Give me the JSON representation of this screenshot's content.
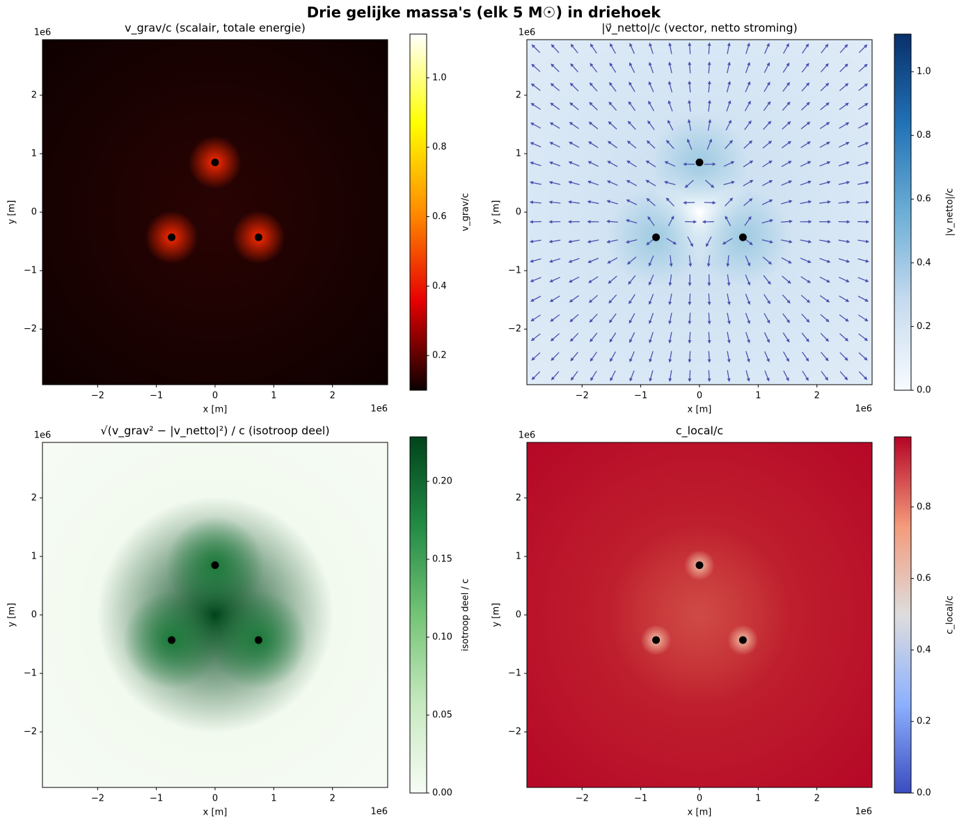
{
  "title": "Drie gelijke massa's (elk 5 M☉) in driehoek",
  "chart_data": [
    {
      "type": "heatmap",
      "title": "v_grav/c (scalair, totale energie)",
      "xlabel": "x [m]",
      "ylabel": "y [m]",
      "x_offset": "1e6",
      "y_offset": "1e6",
      "xlim": [
        -2.94,
        2.94
      ],
      "ylim": [
        -2.95,
        2.95
      ],
      "xticks": [
        {
          "value": -2,
          "label": "−2"
        },
        {
          "value": -1,
          "label": "−1"
        },
        0,
        1,
        2
      ],
      "yticks": [
        {
          "value": -2,
          "label": "−2"
        },
        {
          "value": -1,
          "label": "−1"
        },
        0,
        1,
        2
      ],
      "masses": {
        "x": [
          0,
          -0.74,
          0.74
        ],
        "y": [
          0.85,
          -0.43,
          -0.43
        ]
      },
      "mass_color": "#000000",
      "colorbar": {
        "label": "v_grav/c",
        "lim": [
          0.1,
          1.126
        ],
        "ticks": [
          0.2,
          0.4,
          0.6,
          0.8,
          {
            "value": 1.0,
            "label": "1.0"
          }
        ],
        "colormap": [
          "#0b0000",
          "#e60000",
          "#ff8c00",
          "#ffff00",
          "#ffffff"
        ]
      }
    },
    {
      "type": "heatmap",
      "title": "|v⃗_netto|/c (vector, netto stroming)",
      "xlabel": "x [m]",
      "ylabel": "y [m]",
      "x_offset": "1e6",
      "y_offset": "1e6",
      "xlim": [
        -2.94,
        2.94
      ],
      "ylim": [
        -2.95,
        2.95
      ],
      "xticks": [
        {
          "value": -2,
          "label": "−2"
        },
        {
          "value": -1,
          "label": "−1"
        },
        0,
        1,
        2
      ],
      "yticks": [
        {
          "value": -2,
          "label": "−2"
        },
        {
          "value": -1,
          "label": "−1"
        },
        0,
        1,
        2
      ],
      "masses": {
        "x": [
          0,
          -0.74,
          0.74
        ],
        "y": [
          0.85,
          -0.43,
          -0.43
        ]
      },
      "mass_color": "#000000",
      "quiver": true,
      "quiver_color": "#4a50b0",
      "colorbar": {
        "label": "|v_netto|/c",
        "lim": [
          0,
          1.118
        ],
        "ticks": [
          {
            "value": 0,
            "label": "0.0"
          },
          0.2,
          0.4,
          0.6,
          0.8,
          {
            "value": 1.0,
            "label": "1.0"
          }
        ],
        "colormap": [
          "#f7fbff",
          "#c6dbef",
          "#6baed6",
          "#2171b5",
          "#08306b"
        ]
      }
    },
    {
      "type": "heatmap",
      "title": "√(v_grav² − |v_netto|²) / c (isotroop deel)",
      "xlabel": "x [m]",
      "ylabel": "y [m]",
      "x_offset": "1e6",
      "y_offset": "1e6",
      "xlim": [
        -2.94,
        2.94
      ],
      "ylim": [
        -2.95,
        2.95
      ],
      "xticks": [
        {
          "value": -2,
          "label": "−2"
        },
        {
          "value": -1,
          "label": "−1"
        },
        0,
        1,
        2
      ],
      "yticks": [
        {
          "value": -2,
          "label": "−2"
        },
        {
          "value": -1,
          "label": "−1"
        },
        0,
        1,
        2
      ],
      "masses": {
        "x": [
          0,
          -0.74,
          0.74
        ],
        "y": [
          0.85,
          -0.43,
          -0.43
        ]
      },
      "mass_color": "#000000",
      "colorbar": {
        "label": "isotroop deel / c",
        "lim": [
          0,
          0.2286
        ],
        "ticks": [
          {
            "value": 0,
            "label": "0.00"
          },
          {
            "value": 0.05,
            "label": "0.05"
          },
          {
            "value": 0.1,
            "label": "0.10"
          },
          {
            "value": 0.15,
            "label": "0.15"
          },
          {
            "value": 0.2,
            "label": "0.20"
          }
        ],
        "colormap": [
          "#f7fcf5",
          "#c7e9c0",
          "#74c476",
          "#238b45",
          "#00441b"
        ]
      }
    },
    {
      "type": "heatmap",
      "title": "c_local/c",
      "xlabel": "x [m]",
      "ylabel": "y [m]",
      "x_offset": "1e6",
      "y_offset": "1e6",
      "xlim": [
        -2.94,
        2.94
      ],
      "ylim": [
        -2.95,
        2.95
      ],
      "xticks": [
        {
          "value": -2,
          "label": "−2"
        },
        {
          "value": -1,
          "label": "−1"
        },
        0,
        1,
        2
      ],
      "yticks": [
        {
          "value": -2,
          "label": "−2"
        },
        {
          "value": -1,
          "label": "−1"
        },
        0,
        1,
        2
      ],
      "masses": {
        "x": [
          0,
          -0.74,
          0.74
        ],
        "y": [
          0.85,
          -0.43,
          -0.43
        ]
      },
      "mass_color": "#000000",
      "colorbar": {
        "label": "c_local/c",
        "lim": [
          0,
          0.996
        ],
        "ticks": [
          {
            "value": 0,
            "label": "0.0"
          },
          0.2,
          0.4,
          0.6,
          0.8
        ],
        "colormap": [
          "#3b4cc0",
          "#8db0fe",
          "#dddddd",
          "#f49a7b",
          "#b40426"
        ]
      }
    }
  ]
}
